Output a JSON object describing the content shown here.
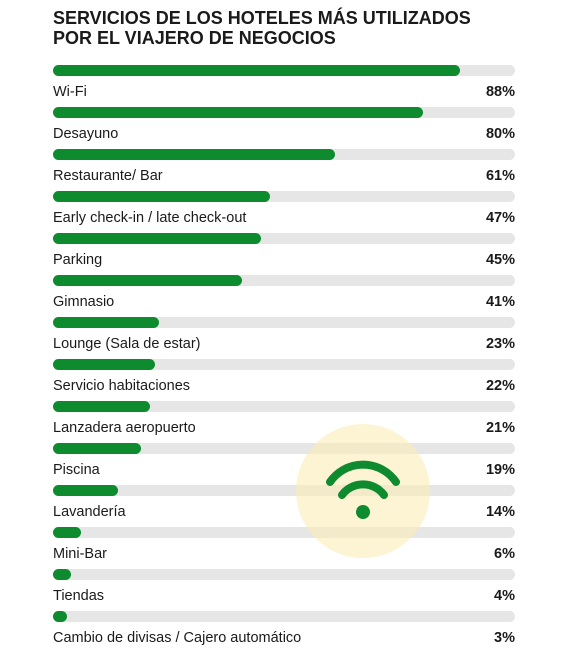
{
  "chart_data": {
    "type": "bar",
    "orientation": "horizontal",
    "title_lines": [
      "SERVICIOS DE LOS HOTELES MÁS UTILIZADOS",
      "POR EL VIAJERO DE NEGOCIOS"
    ],
    "unit": "%",
    "xlim": [
      0,
      100
    ],
    "grid": false,
    "categories": [
      "Wi-Fi",
      "Desayuno",
      "Restaurante/ Bar",
      "Early check-in / late check-out",
      "Parking",
      "Gimnasio",
      "Lounge (Sala de estar)",
      "Servicio habitaciones",
      "Lanzadera aeropuerto",
      "Piscina",
      "Lavandería",
      "Mini-Bar",
      "Tiendas",
      "Cambio de divisas / Cajero automático"
    ],
    "values": [
      88,
      80,
      61,
      47,
      45,
      41,
      23,
      22,
      21,
      19,
      14,
      6,
      4,
      3
    ],
    "value_labels": [
      "88%",
      "80%",
      "61%",
      "47%",
      "45%",
      "41%",
      "23%",
      "22%",
      "21%",
      "19%",
      "14%",
      "6%",
      "4%",
      "3%"
    ],
    "colors": {
      "bar": "#0e8a2f",
      "track": "#e6e6e6",
      "badge": "#faecb4"
    }
  },
  "decoration": {
    "icon": "wifi-icon"
  }
}
